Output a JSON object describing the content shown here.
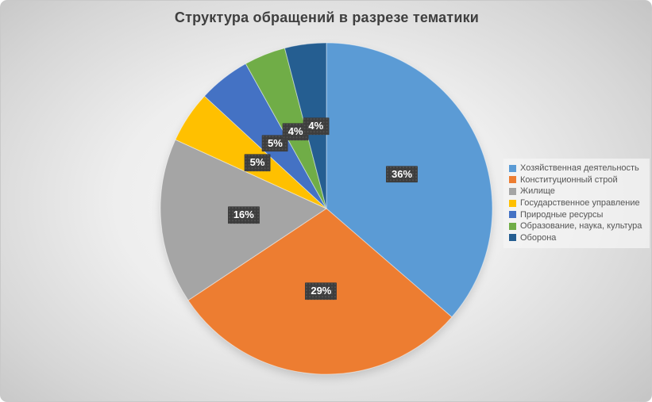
{
  "chart_data": {
    "type": "pie",
    "title": "Структура обращений в разрезе тематики",
    "legend_position": "right",
    "start_angle_deg": 0,
    "direction": "clockwise",
    "labels_style": "percent-in-dark-box",
    "slices": [
      {
        "label": "Хозяйственная деятельность",
        "value": 36,
        "display": "36%",
        "color": "#5B9BD5"
      },
      {
        "label": "Конституционный строй",
        "value": 29,
        "display": "29%",
        "color": "#ED7D31"
      },
      {
        "label": "Жилище",
        "value": 16,
        "display": "16%",
        "color": "#A5A5A5"
      },
      {
        "label": "Государственное управление",
        "value": 5,
        "display": "5%",
        "color": "#FFC000"
      },
      {
        "label": "Природные ресурсы",
        "value": 5,
        "display": "5%",
        "color": "#4472C4"
      },
      {
        "label": "Образование, наука, культура",
        "value": 4,
        "display": "4%",
        "color": "#70AD47"
      },
      {
        "label": "Оборона",
        "value": 4,
        "display": "4%",
        "color": "#255E91"
      }
    ]
  }
}
